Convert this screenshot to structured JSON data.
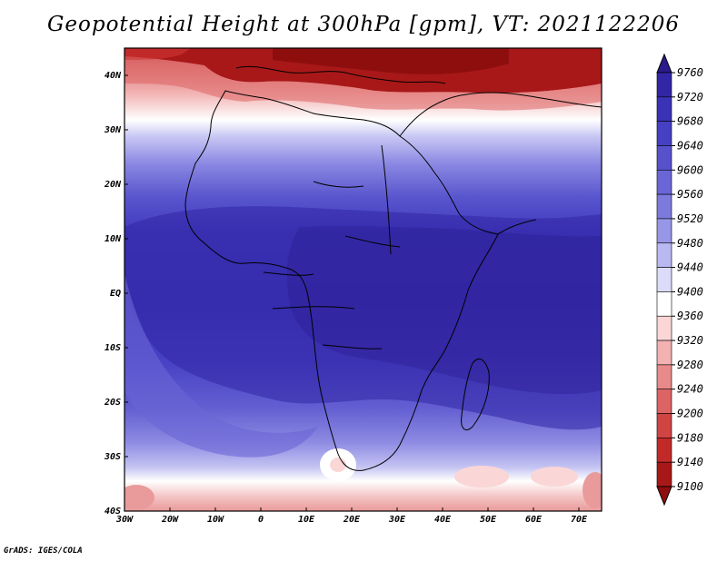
{
  "title": "Geopotential Height at 300hPa [gpm], VT: 2021122206",
  "credit": "GrADS: IGES/COLA",
  "map": {
    "lon_range": [
      -30,
      75
    ],
    "lat_range": [
      -40,
      45
    ],
    "x_ticks": [
      "30W",
      "20W",
      "10W",
      "0",
      "10E",
      "20E",
      "30E",
      "40E",
      "50E",
      "60E",
      "70E"
    ],
    "y_ticks": [
      "40N",
      "30N",
      "20N",
      "10N",
      "EQ",
      "10S",
      "20S",
      "30S",
      "40S"
    ]
  },
  "colorbar": {
    "levels": [
      "9760",
      "9720",
      "9680",
      "9640",
      "9600",
      "9560",
      "9520",
      "9480",
      "9440",
      "9400",
      "9360",
      "9320",
      "9280",
      "9240",
      "9200",
      "9180",
      "9140",
      "9100"
    ],
    "colors": [
      "#2a1a8c",
      "#3226a6",
      "#3a33b8",
      "#4640c4",
      "#5752cc",
      "#6a66d6",
      "#7d7ade",
      "#9896e6",
      "#b9b8f0",
      "#dcdcfa",
      "#ffffff",
      "#fad6d6",
      "#f2b2b2",
      "#e88a8a",
      "#dd6464",
      "#d14444",
      "#c22a2a",
      "#a81818",
      "#8e0e0e"
    ],
    "colors_note": ""
  }
}
